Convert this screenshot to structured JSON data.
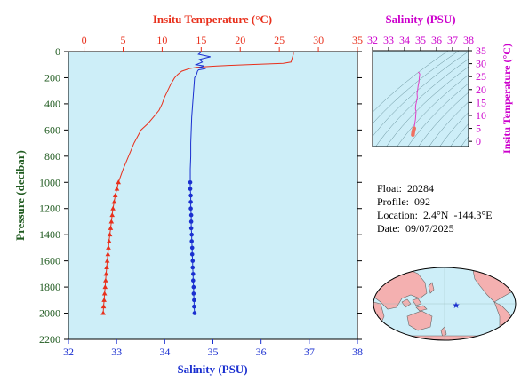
{
  "colors": {
    "plot_bg": "#cdeef8",
    "temperature": "#e8301c",
    "salinity": "#1a2fd0",
    "ts_curve": "#e040c8",
    "ts_points": "#f07060",
    "axis_salinity_ts": "#cc00cc",
    "axis_pressure": "#1f5a1f",
    "map_ocean": "#cdeef8",
    "map_land": "#f4b0b0",
    "float_marker": "#1a2fd0"
  },
  "info": {
    "float_label": "Float:",
    "float_value": "20284",
    "profile_label": "Profile:",
    "profile_value": "092",
    "location_label": "Location:",
    "location_value": "2.4°N  -144.3°E",
    "date_label": "Date:",
    "date_value": "09/07/2025"
  },
  "map": {
    "float_marker_icon": "star-icon",
    "float_position": {
      "lat": 2.4,
      "lon": -144.3
    }
  },
  "chart_data": [
    {
      "type": "line",
      "name": "profile",
      "temperature_axis": {
        "label": "Insitu Temperature (°C)",
        "ticks": [
          "0",
          "5",
          "10",
          "15",
          "20",
          "25",
          "30",
          "35"
        ],
        "range": [
          -2,
          35
        ]
      },
      "salinity_axis": {
        "label": "Salinity (PSU)",
        "ticks": [
          "32",
          "33",
          "34",
          "35",
          "36",
          "37",
          "38"
        ],
        "range": [
          32,
          38
        ]
      },
      "pressure_axis": {
        "label": "Pressure (decibar)",
        "ticks": [
          "0",
          "200",
          "400",
          "600",
          "800",
          "1000",
          "1200",
          "1400",
          "1600",
          "1800",
          "2000",
          "2200"
        ],
        "range": [
          0,
          2200
        ],
        "reversed": true
      },
      "series": [
        {
          "variable": "temperature",
          "pressure": [
            5,
            20,
            40,
            60,
            80,
            90,
            100,
            110,
            120,
            130,
            150,
            175,
            200,
            250,
            300,
            350,
            400,
            450,
            500,
            550,
            600,
            700,
            800,
            900,
            1000,
            1050,
            1100,
            1150,
            1200,
            1250,
            1300,
            1350,
            1400,
            1450,
            1500,
            1550,
            1600,
            1650,
            1700,
            1750,
            1800,
            1850,
            1900,
            1950,
            2000
          ],
          "values": [
            26.8,
            26.8,
            26.7,
            26.6,
            26.5,
            25.5,
            21.0,
            17.0,
            14.5,
            13.5,
            12.5,
            12.0,
            11.6,
            11.1,
            10.7,
            10.3,
            10.0,
            9.6,
            8.9,
            8.2,
            7.3,
            6.4,
            5.7,
            5.0,
            4.4,
            4.2,
            4.0,
            3.85,
            3.7,
            3.6,
            3.5,
            3.4,
            3.3,
            3.2,
            3.12,
            3.05,
            2.97,
            2.9,
            2.82,
            2.76,
            2.7,
            2.63,
            2.57,
            2.5,
            2.45
          ]
        },
        {
          "variable": "salinity",
          "pressure": [
            5,
            20,
            40,
            60,
            80,
            100,
            110,
            120,
            130,
            140,
            150,
            175,
            200,
            300,
            400,
            500,
            600,
            700,
            800,
            900,
            1000,
            1050,
            1100,
            1150,
            1200,
            1250,
            1300,
            1350,
            1400,
            1450,
            1500,
            1550,
            1600,
            1650,
            1700,
            1750,
            1800,
            1850,
            1900,
            1950,
            2000
          ],
          "values": [
            34.75,
            34.7,
            34.95,
            34.72,
            34.78,
            34.65,
            34.82,
            34.73,
            34.85,
            34.7,
            34.68,
            34.66,
            34.62,
            34.6,
            34.58,
            34.56,
            34.55,
            34.54,
            34.54,
            34.53,
            34.53,
            34.53,
            34.54,
            34.54,
            34.54,
            34.55,
            34.55,
            34.55,
            34.56,
            34.56,
            34.57,
            34.57,
            34.58,
            34.58,
            34.59,
            34.59,
            34.6,
            34.6,
            34.61,
            34.61,
            34.62
          ]
        }
      ]
    },
    {
      "type": "scatter",
      "name": "ts_diagram",
      "title": "Salinity (PSU)",
      "x_ticks": [
        "32",
        "33",
        "34",
        "35",
        "36",
        "37",
        "38"
      ],
      "xlim": [
        32,
        38
      ],
      "y_label": "Insitu Temperature (°C)",
      "y_ticks": [
        "0",
        "5",
        "10",
        "15",
        "20",
        "25",
        "30",
        "35"
      ],
      "ylim": [
        -2,
        35
      ],
      "density_contours": true,
      "series": [
        {
          "salinity": [
            34.52,
            34.53,
            34.54,
            34.56,
            34.58,
            34.6,
            34.62,
            34.65,
            34.68,
            34.7,
            34.72,
            34.68,
            34.7,
            34.75,
            34.8,
            34.78,
            34.82,
            34.85,
            34.9,
            34.92,
            34.95,
            34.9,
            34.85
          ],
          "temperature": [
            2.5,
            3.0,
            3.5,
            4.0,
            4.5,
            5.0,
            6.0,
            7.3,
            8.5,
            10.0,
            11.5,
            12.5,
            14.0,
            15.5,
            17.0,
            18.5,
            20.0,
            21.5,
            23.0,
            24.5,
            26.0,
            26.5,
            26.8
          ]
        }
      ]
    }
  ]
}
